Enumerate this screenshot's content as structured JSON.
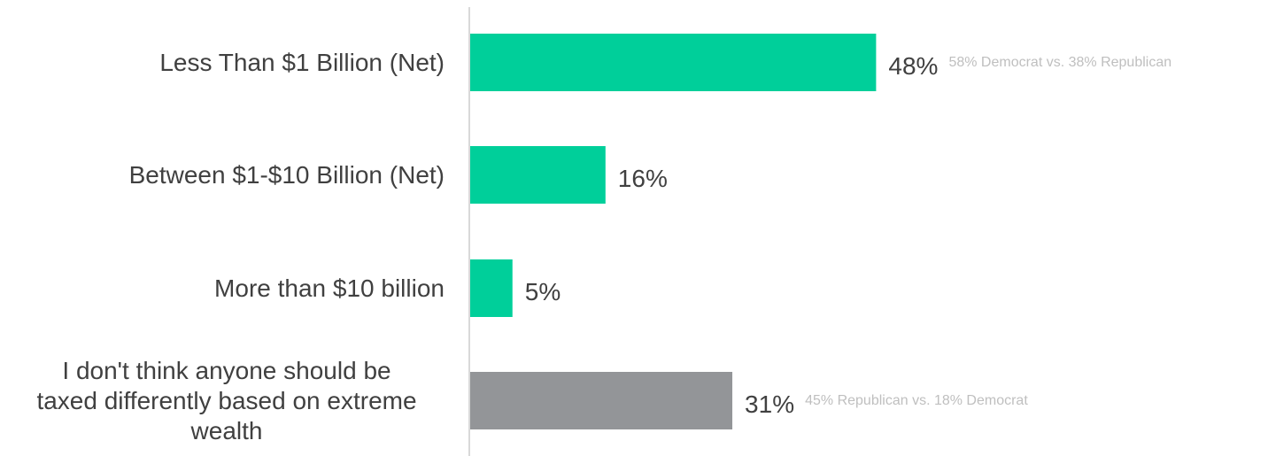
{
  "chart_data": {
    "type": "bar",
    "orientation": "horizontal",
    "categories": [
      "Less Than $1 Billion (Net)",
      "Between $1-$10 Billion (Net)",
      "More than $10 billion",
      "I don't think anyone should be taxed differently based on extreme wealth"
    ],
    "category_lines": [
      [
        "Less Than $1 Billion (Net)"
      ],
      [
        "Between $1-$10 Billion (Net)"
      ],
      [
        "More than $10 billion"
      ],
      [
        "I don't think anyone should be",
        "taxed differently based on extreme",
        "wealth"
      ]
    ],
    "values": [
      48,
      16,
      5,
      31
    ],
    "value_labels": [
      "48%",
      "16%",
      "5%",
      "31%"
    ],
    "annotations": [
      "58% Democrat vs. 38% Republican",
      "",
      "",
      "45% Republican vs. 18% Democrat"
    ],
    "bar_colors": [
      "#00cf9a",
      "#00cf9a",
      "#00cf9a",
      "#939598"
    ],
    "title": "",
    "xlabel": "",
    "ylabel": "",
    "xlim": [
      0,
      100
    ],
    "grid": false,
    "legend": "none"
  },
  "colors": {
    "primary_bar": "#00cf9a",
    "neutral_bar": "#939598",
    "axis_line": "#d9d9d9",
    "label_text": "#404040",
    "annotation_text": "#bfbfbf"
  }
}
